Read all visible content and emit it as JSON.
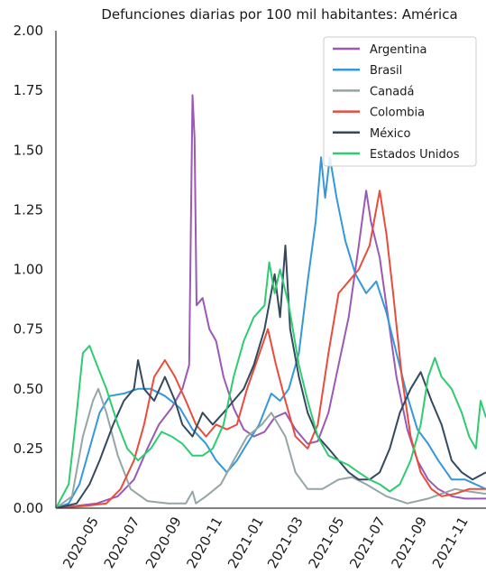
{
  "chart_data": {
    "type": "line",
    "title": "Defunciones diarias por 100 mil habitantes: América",
    "xlabel": "",
    "ylabel": "",
    "x_start": "2020-03-01",
    "x_end": "2021-11-30",
    "ylim": [
      0,
      2.0
    ],
    "yticks": [
      "0.00",
      "0.25",
      "0.50",
      "0.75",
      "1.00",
      "1.25",
      "1.50",
      "1.75",
      "2.00"
    ],
    "xticks": [
      "2020-05",
      "2020-07",
      "2020-09",
      "2020-11",
      "2021-01",
      "2021-03",
      "2021-05",
      "2021-07",
      "2021-09",
      "2021-11"
    ],
    "grid": false,
    "legend_position": "top-right",
    "series": [
      {
        "name": "Argentina",
        "color": "#9b59b6",
        "points": [
          [
            "2020-03-01",
            0.0
          ],
          [
            "2020-04-01",
            0.01
          ],
          [
            "2020-05-01",
            0.02
          ],
          [
            "2020-06-01",
            0.05
          ],
          [
            "2020-06-25",
            0.12
          ],
          [
            "2020-07-15",
            0.25
          ],
          [
            "2020-08-01",
            0.35
          ],
          [
            "2020-08-20",
            0.42
          ],
          [
            "2020-09-05",
            0.5
          ],
          [
            "2020-09-15",
            0.6
          ],
          [
            "2020-09-20",
            1.73
          ],
          [
            "2020-09-23",
            1.55
          ],
          [
            "2020-09-26",
            0.85
          ],
          [
            "2020-10-05",
            0.88
          ],
          [
            "2020-10-15",
            0.75
          ],
          [
            "2020-10-25",
            0.7
          ],
          [
            "2020-11-05",
            0.55
          ],
          [
            "2020-11-20",
            0.42
          ],
          [
            "2020-12-05",
            0.33
          ],
          [
            "2020-12-20",
            0.3
          ],
          [
            "2021-01-05",
            0.32
          ],
          [
            "2021-01-20",
            0.38
          ],
          [
            "2021-02-05",
            0.4
          ],
          [
            "2021-02-20",
            0.33
          ],
          [
            "2021-03-10",
            0.27
          ],
          [
            "2021-03-25",
            0.28
          ],
          [
            "2021-04-10",
            0.4
          ],
          [
            "2021-04-25",
            0.6
          ],
          [
            "2021-05-10",
            0.8
          ],
          [
            "2021-05-25",
            1.1
          ],
          [
            "2021-06-05",
            1.33
          ],
          [
            "2021-06-12",
            1.2
          ],
          [
            "2021-06-25",
            1.05
          ],
          [
            "2021-07-05",
            0.85
          ],
          [
            "2021-07-20",
            0.55
          ],
          [
            "2021-08-05",
            0.33
          ],
          [
            "2021-08-20",
            0.2
          ],
          [
            "2021-09-05",
            0.12
          ],
          [
            "2021-09-20",
            0.08
          ],
          [
            "2021-10-10",
            0.05
          ],
          [
            "2021-10-30",
            0.04
          ],
          [
            "2021-11-30",
            0.04
          ]
        ]
      },
      {
        "name": "Brasil",
        "color": "#3498db",
        "points": [
          [
            "2020-03-01",
            0.0
          ],
          [
            "2020-03-20",
            0.02
          ],
          [
            "2020-04-05",
            0.1
          ],
          [
            "2020-04-20",
            0.25
          ],
          [
            "2020-05-05",
            0.4
          ],
          [
            "2020-05-20",
            0.47
          ],
          [
            "2020-06-10",
            0.48
          ],
          [
            "2020-07-01",
            0.5
          ],
          [
            "2020-07-20",
            0.5
          ],
          [
            "2020-08-10",
            0.47
          ],
          [
            "2020-09-01",
            0.42
          ],
          [
            "2020-09-20",
            0.33
          ],
          [
            "2020-10-10",
            0.27
          ],
          [
            "2020-10-25",
            0.2
          ],
          [
            "2020-11-10",
            0.15
          ],
          [
            "2020-11-25",
            0.2
          ],
          [
            "2020-12-10",
            0.27
          ],
          [
            "2020-12-28",
            0.35
          ],
          [
            "2021-01-15",
            0.48
          ],
          [
            "2021-01-28",
            0.45
          ],
          [
            "2021-02-10",
            0.5
          ],
          [
            "2021-02-25",
            0.65
          ],
          [
            "2021-03-10",
            0.95
          ],
          [
            "2021-03-22",
            1.2
          ],
          [
            "2021-03-30",
            1.47
          ],
          [
            "2021-04-05",
            1.3
          ],
          [
            "2021-04-12",
            1.47
          ],
          [
            "2021-04-22",
            1.3
          ],
          [
            "2021-05-05",
            1.12
          ],
          [
            "2021-05-20",
            0.98
          ],
          [
            "2021-06-05",
            0.9
          ],
          [
            "2021-06-20",
            0.95
          ],
          [
            "2021-07-05",
            0.82
          ],
          [
            "2021-07-20",
            0.65
          ],
          [
            "2021-08-05",
            0.47
          ],
          [
            "2021-08-20",
            0.33
          ],
          [
            "2021-09-05",
            0.27
          ],
          [
            "2021-09-20",
            0.2
          ],
          [
            "2021-10-10",
            0.12
          ],
          [
            "2021-10-30",
            0.12
          ],
          [
            "2021-11-30",
            0.08
          ]
        ]
      },
      {
        "name": "Canadá",
        "color": "#95a5a6",
        "points": [
          [
            "2020-03-01",
            0.0
          ],
          [
            "2020-03-25",
            0.05
          ],
          [
            "2020-04-10",
            0.3
          ],
          [
            "2020-04-25",
            0.45
          ],
          [
            "2020-05-03",
            0.5
          ],
          [
            "2020-05-15",
            0.4
          ],
          [
            "2020-06-01",
            0.22
          ],
          [
            "2020-06-20",
            0.08
          ],
          [
            "2020-07-15",
            0.03
          ],
          [
            "2020-08-15",
            0.02
          ],
          [
            "2020-09-10",
            0.02
          ],
          [
            "2020-09-20",
            0.07
          ],
          [
            "2020-09-25",
            0.02
          ],
          [
            "2020-10-10",
            0.05
          ],
          [
            "2020-11-01",
            0.1
          ],
          [
            "2020-11-20",
            0.2
          ],
          [
            "2020-12-10",
            0.3
          ],
          [
            "2021-01-01",
            0.35
          ],
          [
            "2021-01-15",
            0.4
          ],
          [
            "2021-02-05",
            0.3
          ],
          [
            "2021-02-20",
            0.15
          ],
          [
            "2021-03-10",
            0.08
          ],
          [
            "2021-04-01",
            0.08
          ],
          [
            "2021-04-25",
            0.12
          ],
          [
            "2021-05-15",
            0.13
          ],
          [
            "2021-06-05",
            0.1
          ],
          [
            "2021-07-05",
            0.05
          ],
          [
            "2021-08-05",
            0.02
          ],
          [
            "2021-09-05",
            0.04
          ],
          [
            "2021-09-25",
            0.06
          ],
          [
            "2021-10-15",
            0.08
          ],
          [
            "2021-11-05",
            0.07
          ],
          [
            "2021-11-30",
            0.06
          ]
        ]
      },
      {
        "name": "Colombia",
        "color": "#e74c3c",
        "points": [
          [
            "2020-03-01",
            0.0
          ],
          [
            "2020-04-15",
            0.01
          ],
          [
            "2020-05-15",
            0.02
          ],
          [
            "2020-06-05",
            0.08
          ],
          [
            "2020-06-25",
            0.2
          ],
          [
            "2020-07-10",
            0.35
          ],
          [
            "2020-07-25",
            0.55
          ],
          [
            "2020-08-10",
            0.62
          ],
          [
            "2020-08-25",
            0.55
          ],
          [
            "2020-09-10",
            0.45
          ],
          [
            "2020-09-25",
            0.35
          ],
          [
            "2020-10-10",
            0.3
          ],
          [
            "2020-10-25",
            0.35
          ],
          [
            "2020-11-10",
            0.33
          ],
          [
            "2020-11-25",
            0.35
          ],
          [
            "2020-12-10",
            0.5
          ],
          [
            "2020-12-25",
            0.62
          ],
          [
            "2021-01-10",
            0.75
          ],
          [
            "2021-01-22",
            0.6
          ],
          [
            "2021-02-05",
            0.45
          ],
          [
            "2021-02-20",
            0.3
          ],
          [
            "2021-03-10",
            0.25
          ],
          [
            "2021-03-25",
            0.35
          ],
          [
            "2021-04-10",
            0.65
          ],
          [
            "2021-04-25",
            0.9
          ],
          [
            "2021-05-10",
            0.95
          ],
          [
            "2021-05-25",
            1.0
          ],
          [
            "2021-06-10",
            1.1
          ],
          [
            "2021-06-25",
            1.33
          ],
          [
            "2021-07-05",
            1.15
          ],
          [
            "2021-07-15",
            0.9
          ],
          [
            "2021-07-28",
            0.55
          ],
          [
            "2021-08-10",
            0.3
          ],
          [
            "2021-08-25",
            0.15
          ],
          [
            "2021-09-10",
            0.08
          ],
          [
            "2021-09-25",
            0.05
          ],
          [
            "2021-10-15",
            0.06
          ],
          [
            "2021-11-05",
            0.08
          ],
          [
            "2021-11-30",
            0.08
          ]
        ]
      },
      {
        "name": "México",
        "color": "#34495e",
        "points": [
          [
            "2020-03-01",
            0.0
          ],
          [
            "2020-04-01",
            0.02
          ],
          [
            "2020-04-20",
            0.1
          ],
          [
            "2020-05-05",
            0.2
          ],
          [
            "2020-05-25",
            0.35
          ],
          [
            "2020-06-10",
            0.45
          ],
          [
            "2020-06-25",
            0.5
          ],
          [
            "2020-07-01",
            0.62
          ],
          [
            "2020-07-10",
            0.5
          ],
          [
            "2020-07-25",
            0.45
          ],
          [
            "2020-08-10",
            0.55
          ],
          [
            "2020-08-25",
            0.45
          ],
          [
            "2020-09-05",
            0.35
          ],
          [
            "2020-09-20",
            0.3
          ],
          [
            "2020-10-05",
            0.4
          ],
          [
            "2020-10-20",
            0.35
          ],
          [
            "2020-11-05",
            0.4
          ],
          [
            "2020-11-20",
            0.45
          ],
          [
            "2020-12-05",
            0.5
          ],
          [
            "2020-12-20",
            0.6
          ],
          [
            "2021-01-05",
            0.75
          ],
          [
            "2021-01-20",
            0.98
          ],
          [
            "2021-01-28",
            0.8
          ],
          [
            "2021-02-05",
            1.1
          ],
          [
            "2021-02-12",
            0.75
          ],
          [
            "2021-02-25",
            0.55
          ],
          [
            "2021-03-10",
            0.4
          ],
          [
            "2021-03-25",
            0.3
          ],
          [
            "2021-04-10",
            0.25
          ],
          [
            "2021-04-25",
            0.2
          ],
          [
            "2021-05-10",
            0.15
          ],
          [
            "2021-05-25",
            0.12
          ],
          [
            "2021-06-10",
            0.12
          ],
          [
            "2021-06-25",
            0.15
          ],
          [
            "2021-07-10",
            0.25
          ],
          [
            "2021-07-25",
            0.4
          ],
          [
            "2021-08-10",
            0.5
          ],
          [
            "2021-08-25",
            0.57
          ],
          [
            "2021-09-10",
            0.45
          ],
          [
            "2021-09-25",
            0.35
          ],
          [
            "2021-10-10",
            0.2
          ],
          [
            "2021-10-25",
            0.15
          ],
          [
            "2021-11-10",
            0.12
          ],
          [
            "2021-11-30",
            0.15
          ]
        ]
      },
      {
        "name": "Estados Unidos",
        "color": "#2ecc71",
        "points": [
          [
            "2020-03-01",
            0.0
          ],
          [
            "2020-03-20",
            0.1
          ],
          [
            "2020-04-01",
            0.4
          ],
          [
            "2020-04-10",
            0.65
          ],
          [
            "2020-04-20",
            0.68
          ],
          [
            "2020-05-01",
            0.6
          ],
          [
            "2020-05-15",
            0.5
          ],
          [
            "2020-06-01",
            0.35
          ],
          [
            "2020-06-15",
            0.25
          ],
          [
            "2020-07-01",
            0.2
          ],
          [
            "2020-07-20",
            0.25
          ],
          [
            "2020-08-05",
            0.32
          ],
          [
            "2020-08-20",
            0.3
          ],
          [
            "2020-09-05",
            0.27
          ],
          [
            "2020-09-20",
            0.22
          ],
          [
            "2020-10-05",
            0.22
          ],
          [
            "2020-10-20",
            0.25
          ],
          [
            "2020-11-05",
            0.35
          ],
          [
            "2020-11-20",
            0.55
          ],
          [
            "2020-12-05",
            0.7
          ],
          [
            "2020-12-20",
            0.8
          ],
          [
            "2021-01-05",
            0.85
          ],
          [
            "2021-01-12",
            1.03
          ],
          [
            "2021-01-20",
            0.9
          ],
          [
            "2021-01-28",
            1.0
          ],
          [
            "2021-02-10",
            0.85
          ],
          [
            "2021-02-25",
            0.6
          ],
          [
            "2021-03-10",
            0.45
          ],
          [
            "2021-03-25",
            0.3
          ],
          [
            "2021-04-10",
            0.22
          ],
          [
            "2021-04-25",
            0.2
          ],
          [
            "2021-05-10",
            0.18
          ],
          [
            "2021-05-25",
            0.15
          ],
          [
            "2021-06-10",
            0.12
          ],
          [
            "2021-06-25",
            0.1
          ],
          [
            "2021-07-10",
            0.07
          ],
          [
            "2021-07-25",
            0.1
          ],
          [
            "2021-08-10",
            0.2
          ],
          [
            "2021-08-25",
            0.35
          ],
          [
            "2021-09-05",
            0.55
          ],
          [
            "2021-09-15",
            0.63
          ],
          [
            "2021-09-25",
            0.55
          ],
          [
            "2021-10-10",
            0.5
          ],
          [
            "2021-10-25",
            0.4
          ],
          [
            "2021-11-05",
            0.3
          ],
          [
            "2021-11-15",
            0.25
          ],
          [
            "2021-11-22",
            0.45
          ],
          [
            "2021-11-30",
            0.38
          ]
        ]
      }
    ]
  }
}
